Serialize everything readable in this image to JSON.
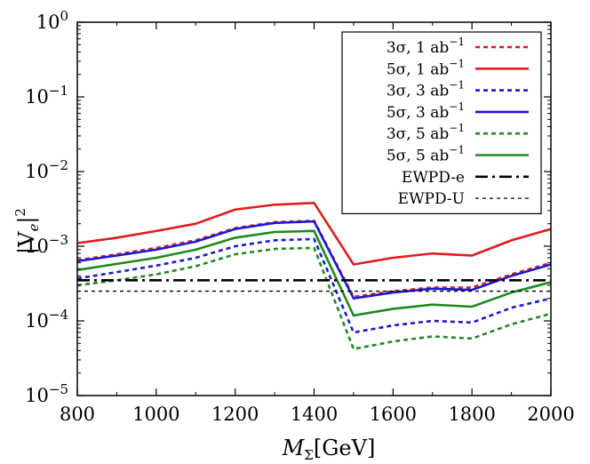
{
  "chart_data": {
    "type": "line",
    "xlabel_base": "M",
    "xlabel_sub": "Σ",
    "xlabel_unit": "[GeV]",
    "ylabel_main": "|V",
    "ylabel_sub": "e",
    "ylabel_close": "|",
    "ylabel_sup": "2",
    "xlim": [
      800,
      2000
    ],
    "ylim": [
      1e-05,
      1
    ],
    "yscale": "log",
    "x_ticks": [
      800,
      1000,
      1200,
      1400,
      1600,
      1800,
      2000
    ],
    "x_tick_labels": [
      "800",
      "1000",
      "1200",
      "1400",
      "1600",
      "1800",
      "2000"
    ],
    "y_ticks": [
      {
        "value": 1e-05,
        "base": "10",
        "exp": "−5"
      },
      {
        "value": 0.0001,
        "base": "10",
        "exp": "−4"
      },
      {
        "value": 0.001,
        "base": "10",
        "exp": "−3"
      },
      {
        "value": 0.01,
        "base": "10",
        "exp": "−2"
      },
      {
        "value": 0.1,
        "base": "10",
        "exp": "−1"
      },
      {
        "value": 1,
        "base": "10",
        "exp": "0"
      }
    ],
    "x": [
      800,
      900,
      1000,
      1100,
      1200,
      1300,
      1400,
      1500,
      1600,
      1700,
      1800,
      1900,
      2000
    ],
    "series": [
      {
        "name": "3σ, 1 ab",
        "sup": "−1",
        "color": "#e41a1c",
        "dash": "dotted",
        "values": [
          0.00065,
          0.00078,
          0.00095,
          0.0012,
          0.00175,
          0.0021,
          0.0022,
          0.00021,
          0.00025,
          0.00028,
          0.00028,
          0.00042,
          0.0006
        ]
      },
      {
        "name": "5σ, 1 ab",
        "sup": "−1",
        "color": "#e41a1c",
        "dash": "solid",
        "values": [
          0.0011,
          0.0013,
          0.0016,
          0.002,
          0.0031,
          0.0036,
          0.0038,
          0.00057,
          0.0007,
          0.0008,
          0.00075,
          0.0012,
          0.0017
        ]
      },
      {
        "name": "3σ, 3 ab",
        "sup": "−1",
        "color": "#1a1ad4",
        "dash": "dotted",
        "values": [
          0.00037,
          0.00045,
          0.00055,
          0.0007,
          0.001,
          0.0012,
          0.00125,
          7e-05,
          8.7e-05,
          0.0001,
          9.5e-05,
          0.00015,
          0.0002
        ]
      },
      {
        "name": "5σ, 3 ab",
        "sup": "−1",
        "color": "#1a1ad4",
        "dash": "solid",
        "values": [
          0.00063,
          0.00075,
          0.0009,
          0.00115,
          0.0017,
          0.00205,
          0.00215,
          0.0002,
          0.00024,
          0.00027,
          0.00026,
          0.0004,
          0.00057
        ]
      },
      {
        "name": "3σ, 5 ab",
        "sup": "−1",
        "color": "#1f8a1f",
        "dash": "dotted",
        "values": [
          0.0003,
          0.00035,
          0.00042,
          0.00054,
          0.00078,
          0.00092,
          0.00095,
          4.2e-05,
          5.3e-05,
          6.2e-05,
          5.8e-05,
          9e-05,
          0.000125
        ]
      },
      {
        "name": "5σ, 5 ab",
        "sup": "−1",
        "color": "#1f8a1f",
        "dash": "solid",
        "values": [
          0.00048,
          0.00058,
          0.0007,
          0.0009,
          0.0013,
          0.00155,
          0.0016,
          0.000118,
          0.000145,
          0.000165,
          0.000155,
          0.00024,
          0.00033
        ]
      },
      {
        "name": "EWPD-e",
        "sup": "",
        "color": "#000000",
        "dash": "dashdot",
        "values": [
          0.00035,
          0.00035,
          0.00035,
          0.00035,
          0.00035,
          0.00035,
          0.00035,
          0.00035,
          0.00035,
          0.00035,
          0.00035,
          0.00035,
          0.00035
        ]
      },
      {
        "name": "EWPD-U",
        "sup": "",
        "color": "#000000",
        "dash": "shortdash",
        "values": [
          0.00025,
          0.00025,
          0.00025,
          0.00025,
          0.00025,
          0.00025,
          0.00025,
          0.00025,
          0.00025,
          0.00025,
          0.00025,
          0.00025,
          0.00025
        ]
      }
    ],
    "legend_position": "top-right"
  }
}
